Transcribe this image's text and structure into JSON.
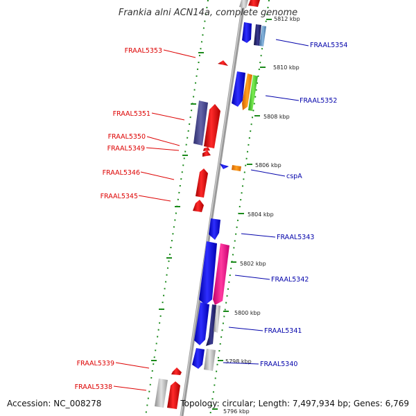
{
  "title": "Frankia alni ACN14a, complete genome",
  "footer": {
    "accession": "Accession: NC_008278",
    "summary": "Topology: circular; Length: 7,497,934 bp; Genes: 6,769"
  },
  "colors": {
    "reverse_label": "#dd0000",
    "forward_label": "#0000aa",
    "backbone": "#9a9a9a",
    "tick": "#1b8a1b"
  },
  "scale_ticks": [
    {
      "label": "5812 kbp"
    },
    {
      "label": "5810 kbp"
    },
    {
      "label": "5808 kbp"
    },
    {
      "label": "5806 kbp"
    },
    {
      "label": "5804 kbp"
    },
    {
      "label": "5802 kbp"
    },
    {
      "label": "5800 kbp"
    },
    {
      "label": "5798 kbp"
    },
    {
      "label": "5796 kbp"
    }
  ],
  "reverse_genes": [
    {
      "label": "FRAAL5353"
    },
    {
      "label": "FRAAL5351"
    },
    {
      "label": "FRAAL5350"
    },
    {
      "label": "FRAAL5349"
    },
    {
      "label": "FRAAL5346"
    },
    {
      "label": "FRAAL5345"
    },
    {
      "label": "FRAAL5339"
    },
    {
      "label": "FRAAL5338"
    }
  ],
  "forward_genes": [
    {
      "label": "FRAAL5354"
    },
    {
      "label": "FRAAL5352"
    },
    {
      "label": "cspA"
    },
    {
      "label": "FRAAL5343"
    },
    {
      "label": "FRAAL5342"
    },
    {
      "label": "FRAAL5341"
    },
    {
      "label": "FRAAL5340"
    }
  ]
}
